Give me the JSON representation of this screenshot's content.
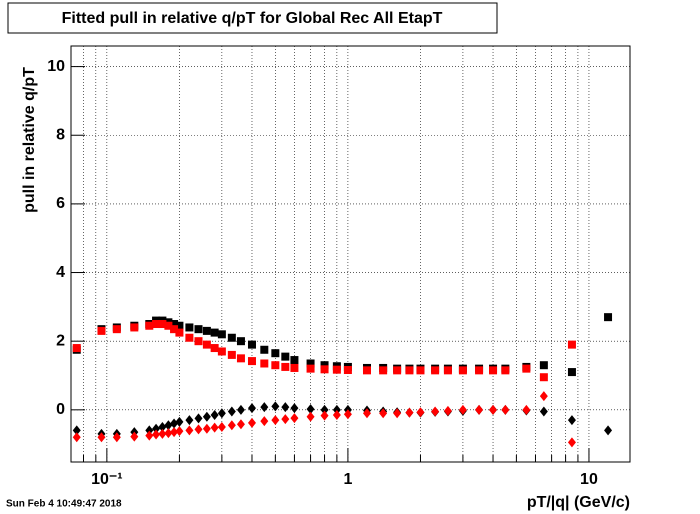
{
  "chart_data": {
    "type": "scatter",
    "title": "Fitted pull in relative q/pT for Global Rec All EtapT",
    "x_label": "pT/|q| (GeV/c)",
    "y_label": "pull in relative q/pT",
    "timestamp": "Sun Feb  4 10:49:47 2018",
    "x_log": true,
    "grid": true,
    "xlim": [
      0.071,
      14.8
    ],
    "ylim": [
      -1.52,
      10.6
    ],
    "xticks": [
      {
        "value": 0.1,
        "label": "10⁻¹"
      },
      1,
      10
    ],
    "xminor_ticks": [
      0.08,
      0.09,
      0.2,
      0.3,
      0.4,
      0.5,
      0.6,
      0.7,
      0.8,
      0.9,
      2,
      3,
      4,
      5,
      6,
      7,
      8,
      9
    ],
    "yticks": [
      0,
      2,
      4,
      6,
      8,
      10
    ],
    "x": [
      0.075,
      0.095,
      0.11,
      0.13,
      0.15,
      0.16,
      0.17,
      0.18,
      0.19,
      0.2,
      0.22,
      0.24,
      0.26,
      0.28,
      0.3,
      0.33,
      0.36,
      0.4,
      0.45,
      0.5,
      0.55,
      0.6,
      0.7,
      0.8,
      0.9,
      1.0,
      1.2,
      1.4,
      1.6,
      1.8,
      2.0,
      2.3,
      2.6,
      3.0,
      3.5,
      4.0,
      4.5,
      5.5,
      6.5,
      8.5,
      12
    ],
    "series": [
      {
        "marker": "square",
        "color": "#000000",
        "values": [
          1.75,
          2.35,
          2.4,
          2.45,
          2.5,
          2.6,
          2.6,
          2.55,
          2.5,
          2.45,
          2.4,
          2.35,
          2.3,
          2.25,
          2.2,
          2.1,
          2.0,
          1.9,
          1.75,
          1.65,
          1.55,
          1.45,
          1.35,
          1.3,
          1.27,
          1.25,
          1.22,
          1.22,
          1.2,
          1.2,
          1.2,
          1.2,
          1.2,
          1.2,
          1.2,
          1.2,
          1.2,
          1.25,
          1.3,
          1.1,
          2.7
        ]
      },
      {
        "marker": "square",
        "color": "#ff0000",
        "values": [
          1.8,
          2.3,
          2.35,
          2.4,
          2.45,
          2.5,
          2.5,
          2.45,
          2.35,
          2.25,
          2.1,
          2.0,
          1.9,
          1.8,
          1.7,
          1.6,
          1.5,
          1.42,
          1.35,
          1.3,
          1.25,
          1.22,
          1.2,
          1.18,
          1.17,
          1.16,
          1.15,
          1.15,
          1.15,
          1.15,
          1.15,
          1.15,
          1.15,
          1.15,
          1.15,
          1.15,
          1.15,
          1.2,
          0.95,
          1.9,
          null
        ]
      },
      {
        "marker": "diamond",
        "color": "#000000",
        "values": [
          -0.6,
          -0.7,
          -0.7,
          -0.65,
          -0.6,
          -0.55,
          -0.5,
          -0.45,
          -0.4,
          -0.35,
          -0.3,
          -0.25,
          -0.2,
          -0.15,
          -0.1,
          -0.05,
          0,
          0.05,
          0.08,
          0.1,
          0.08,
          0.05,
          0.02,
          0,
          0,
          0,
          -0.02,
          -0.05,
          -0.07,
          -0.08,
          -0.08,
          -0.06,
          -0.05,
          -0.03,
          0,
          0,
          0,
          -0.02,
          -0.05,
          -0.3,
          -0.6
        ]
      },
      {
        "marker": "diamond",
        "color": "#ff0000",
        "values": [
          -0.8,
          -0.8,
          -0.8,
          -0.78,
          -0.75,
          -0.72,
          -0.7,
          -0.68,
          -0.65,
          -0.62,
          -0.6,
          -0.57,
          -0.55,
          -0.52,
          -0.5,
          -0.45,
          -0.42,
          -0.38,
          -0.33,
          -0.3,
          -0.27,
          -0.24,
          -0.2,
          -0.17,
          -0.15,
          -0.13,
          -0.1,
          -0.1,
          -0.1,
          -0.08,
          -0.07,
          -0.05,
          -0.03,
          0,
          0,
          0,
          0,
          0,
          0.4,
          -0.95,
          null
        ]
      }
    ]
  }
}
